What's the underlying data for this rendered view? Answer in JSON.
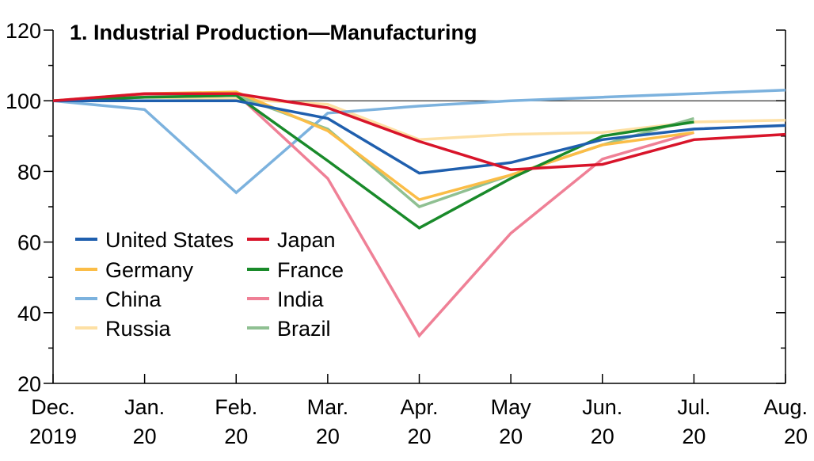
{
  "chart_data": {
    "type": "line",
    "title": "1. Industrial Production—Manufacturing",
    "xlabel": "",
    "ylabel": "",
    "ylim": [
      20,
      120
    ],
    "yticks": [
      20,
      40,
      60,
      80,
      100,
      120
    ],
    "reference_line": 100,
    "categories": [
      [
        "Dec.",
        "2019"
      ],
      [
        "Jan.",
        "20"
      ],
      [
        "Feb.",
        "20"
      ],
      [
        "Mar.",
        "20"
      ],
      [
        "Apr.",
        "20"
      ],
      [
        "May",
        "20"
      ],
      [
        "Jun.",
        "20"
      ],
      [
        "Jul.",
        "20"
      ],
      [
        "Aug.",
        "20"
      ]
    ],
    "legend_position": "left-middle",
    "series": [
      {
        "name": "United States",
        "color": "#1f5fae",
        "values": [
          100,
          100,
          100,
          95,
          79.5,
          82.5,
          89,
          92,
          93
        ]
      },
      {
        "name": "Japan",
        "color": "#d8142a",
        "values": [
          100,
          102,
          102,
          98,
          88.5,
          80.5,
          82,
          89,
          90.5
        ]
      },
      {
        "name": "Germany",
        "color": "#fbbd47",
        "values": [
          100,
          102,
          102.5,
          91.5,
          72,
          79,
          87.5,
          91,
          null
        ]
      },
      {
        "name": "France",
        "color": "#198a2a",
        "values": [
          100,
          101,
          101.5,
          83,
          64,
          78,
          90,
          94,
          null
        ]
      },
      {
        "name": "China",
        "color": "#7cb2de",
        "values": [
          100,
          97.5,
          74,
          96.5,
          98.5,
          100,
          101,
          102,
          103
        ]
      },
      {
        "name": "India",
        "color": "#ef8096",
        "values": [
          100,
          101.5,
          102,
          78,
          33.5,
          62.5,
          83.5,
          91,
          null
        ]
      },
      {
        "name": "Russia",
        "color": "#fde0a4",
        "values": [
          100,
          101,
          100.5,
          99,
          89,
          90.5,
          91,
          94,
          94.5
        ]
      },
      {
        "name": "Brazil",
        "color": "#8fc092",
        "values": [
          100,
          101,
          101.5,
          92,
          70,
          79,
          87.5,
          95,
          null
        ]
      }
    ]
  }
}
